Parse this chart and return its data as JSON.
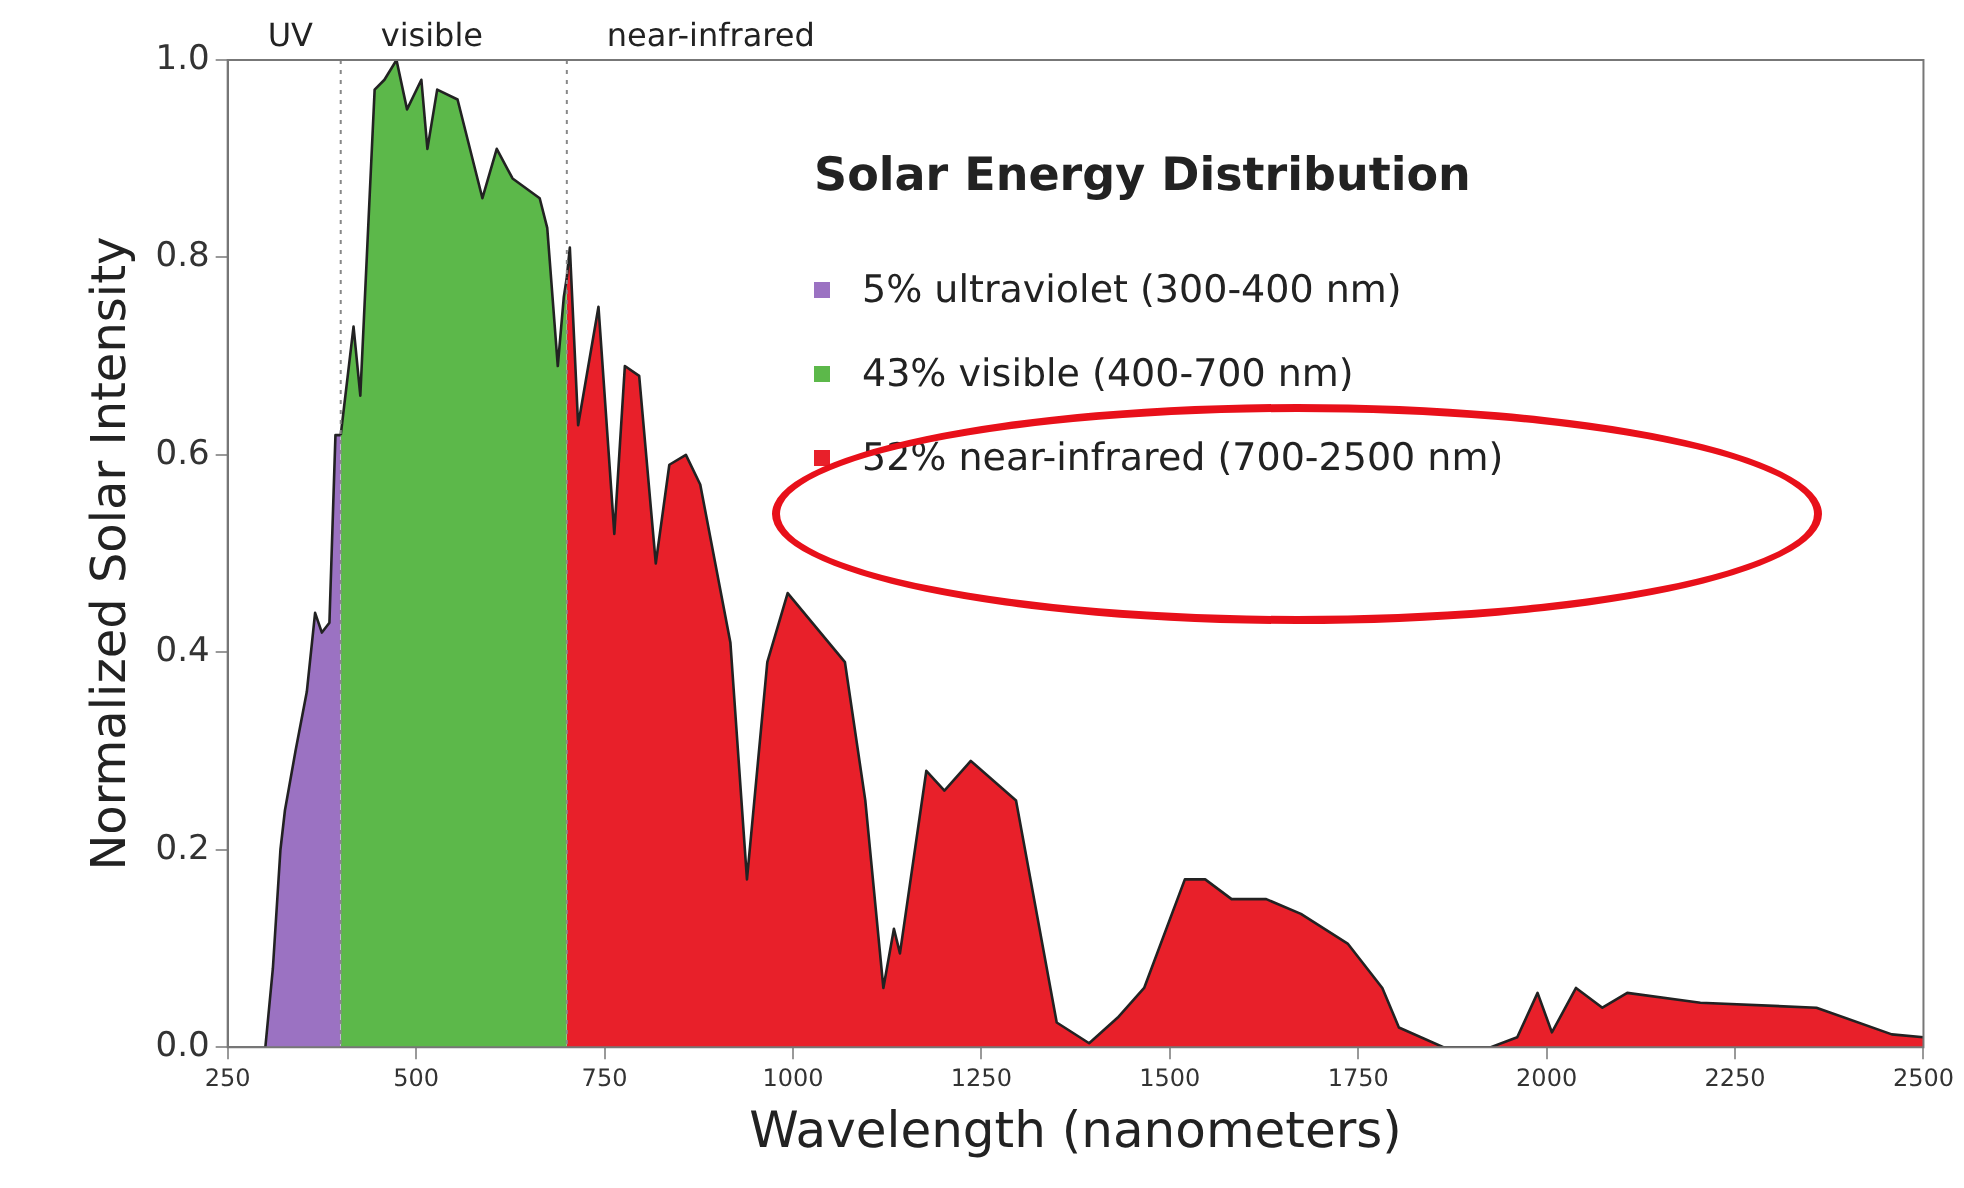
{
  "chart_data": {
    "type": "area",
    "xlabel": "Wavelength (nanometers)",
    "ylabel": "Normalized Solar Intensity",
    "legend_title": "Solar Energy Distribution",
    "legend": "top right",
    "xlim": [
      250,
      2500
    ],
    "xticks": [
      250,
      500,
      750,
      1000,
      1250,
      1500,
      1750,
      2000,
      2250,
      2500
    ],
    "ylim": [
      0,
      1
    ],
    "yticks": [
      {
        "value": 0,
        "label": "0.0"
      },
      0.2,
      0.4,
      0.6,
      0.8,
      {
        "value": 1,
        "label": "1.0"
      }
    ],
    "grid": false,
    "marker": "none",
    "line_style": "solid",
    "series": [
      {
        "name": "5% ultraviolet (300-400 nm)",
        "color": "#9b72c2",
        "x": [
          300,
          310,
          320,
          326,
          340,
          355,
          366,
          375,
          385,
          393,
          400
        ],
        "values": [
          0,
          0.08,
          0.2,
          0.24,
          0.3,
          0.36,
          0.44,
          0.42,
          0.43,
          0.62,
          0.62
        ]
      },
      {
        "name": "43% visible (400-700 nm)",
        "color": "#5cb84a",
        "x": [
          400,
          417,
          426,
          445,
          458,
          474,
          488,
          507,
          515,
          528,
          555,
          588,
          607,
          628,
          664,
          674,
          688,
          696,
          700
        ],
        "values": [
          0.62,
          0.73,
          0.66,
          0.97,
          0.98,
          1.0,
          0.95,
          0.98,
          0.91,
          0.97,
          0.96,
          0.86,
          0.91,
          0.88,
          0.86,
          0.83,
          0.69,
          0.76,
          0.78
        ]
      },
      {
        "name": "52% near-infrared (700-2500 nm)",
        "color": "#e8202a",
        "x": [
          700,
          704,
          715,
          742,
          763,
          777,
          796,
          818,
          836,
          858,
          877,
          917,
          939,
          966,
          993,
          1069,
          1096,
          1120,
          1134,
          1142,
          1177,
          1201,
          1236,
          1296,
          1350,
          1393,
          1431,
          1466,
          1520,
          1547,
          1582,
          1628,
          1674,
          1736,
          1782,
          1804,
          1863,
          1926,
          1961,
          1988,
          2007,
          2039,
          2074,
          2107,
          2204,
          2358,
          2458,
          2500
        ],
        "values": [
          0.78,
          0.81,
          0.63,
          0.75,
          0.52,
          0.69,
          0.68,
          0.49,
          0.59,
          0.6,
          0.57,
          0.41,
          0.17,
          0.39,
          0.46,
          0.39,
          0.25,
          0.06,
          0.12,
          0.095,
          0.28,
          0.26,
          0.29,
          0.25,
          0.025,
          0.004,
          0.03,
          0.06,
          0.17,
          0.17,
          0.15,
          0.15,
          0.135,
          0.105,
          0.06,
          0.02,
          0,
          0,
          0.01,
          0.055,
          0.015,
          0.06,
          0.04,
          0.055,
          0.045,
          0.04,
          0.013,
          0.01
        ]
      }
    ],
    "ref_lines": [
      {
        "axis": "x",
        "value": 400,
        "line_style": "dotted",
        "color": "#888888"
      },
      {
        "axis": "x",
        "value": 700,
        "line_style": "dotted",
        "color": "#888888"
      }
    ],
    "annotations": [
      "UV",
      "visible",
      "near-infrared"
    ]
  }
}
